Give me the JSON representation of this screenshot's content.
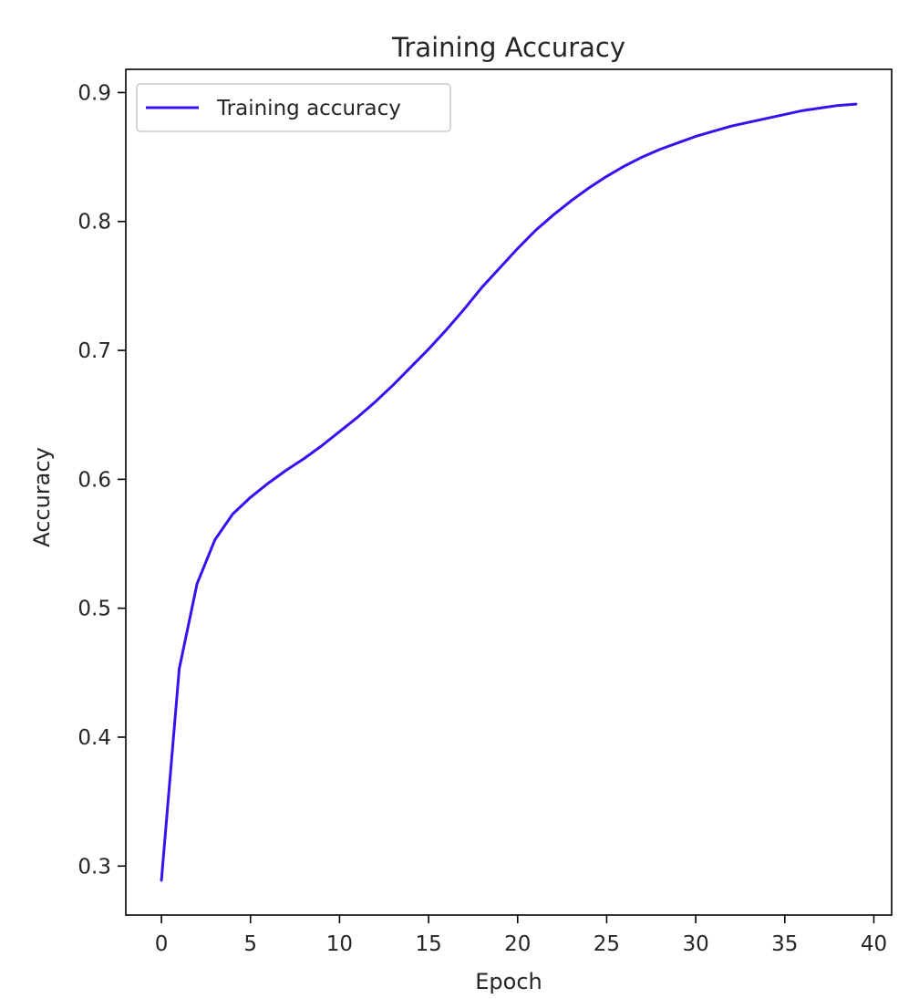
{
  "chart_data": {
    "type": "line",
    "title": "Training Accuracy",
    "xlabel": "Epoch",
    "ylabel": "Accuracy",
    "xlim": [
      -2,
      41
    ],
    "ylim": [
      0.262,
      0.918
    ],
    "xticks": [
      0,
      5,
      10,
      15,
      20,
      25,
      30,
      35,
      40
    ],
    "yticks": [
      0.3,
      0.4,
      0.5,
      0.6,
      0.7,
      0.8,
      0.9
    ],
    "xtick_labels": [
      "0",
      "5",
      "10",
      "15",
      "20",
      "25",
      "30",
      "35",
      "40"
    ],
    "ytick_labels": [
      "0.3",
      "0.4",
      "0.5",
      "0.6",
      "0.7",
      "0.8",
      "0.9"
    ],
    "grid": false,
    "legend": {
      "position": "top-left",
      "entries": [
        "Training accuracy"
      ]
    },
    "series": [
      {
        "name": "Training accuracy",
        "color": "#3a0ff0",
        "x": [
          0,
          1,
          2,
          3,
          4,
          5,
          6,
          7,
          8,
          9,
          10,
          11,
          12,
          13,
          14,
          15,
          16,
          17,
          18,
          19,
          20,
          21,
          22,
          23,
          24,
          25,
          26,
          27,
          28,
          29,
          30,
          31,
          32,
          33,
          34,
          35,
          36,
          37,
          38,
          39
        ],
        "y": [
          0.289,
          0.453,
          0.519,
          0.553,
          0.573,
          0.586,
          0.597,
          0.607,
          0.616,
          0.626,
          0.637,
          0.648,
          0.66,
          0.673,
          0.687,
          0.701,
          0.716,
          0.732,
          0.749,
          0.764,
          0.779,
          0.793,
          0.805,
          0.816,
          0.826,
          0.835,
          0.843,
          0.85,
          0.856,
          0.861,
          0.866,
          0.87,
          0.874,
          0.877,
          0.88,
          0.883,
          0.886,
          0.888,
          0.89,
          0.891
        ]
      }
    ]
  }
}
